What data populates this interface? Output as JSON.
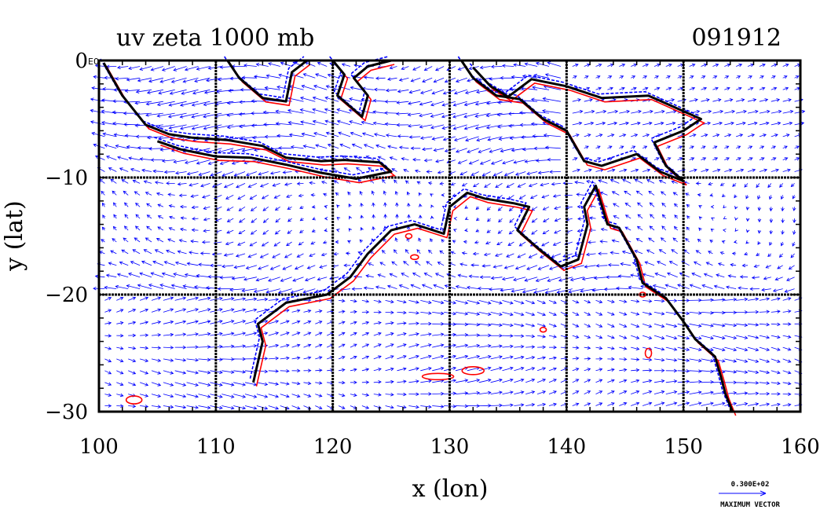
{
  "chart_data": {
    "type": "map-vector-contour",
    "title": "uv zeta 1000 mb",
    "date_label": "091912",
    "xlabel": "x (lon)",
    "ylabel": "y (lat)",
    "xlim": [
      100,
      160
    ],
    "ylim": [
      -30,
      0
    ],
    "x_ticks": [
      100,
      110,
      120,
      130,
      140,
      150,
      160
    ],
    "y_ticks": [
      0,
      -10,
      -20,
      -30
    ],
    "x_tick_labels": [
      "100",
      "110",
      "120",
      "130",
      "140",
      "150",
      "160"
    ],
    "y_tick_labels": [
      "0",
      "−10",
      "−20",
      "−30"
    ],
    "corner_label": "E0",
    "grid": true,
    "legend": {
      "position": "bottom-right",
      "value": "0.300E+02",
      "label": "MAXIMUM VECTOR"
    },
    "colors": {
      "vectors": "#0000ff",
      "positive_contour": "#ff0000",
      "negative_contour": "#0000ff",
      "coastline": "#000000",
      "grid": "#000000"
    }
  }
}
